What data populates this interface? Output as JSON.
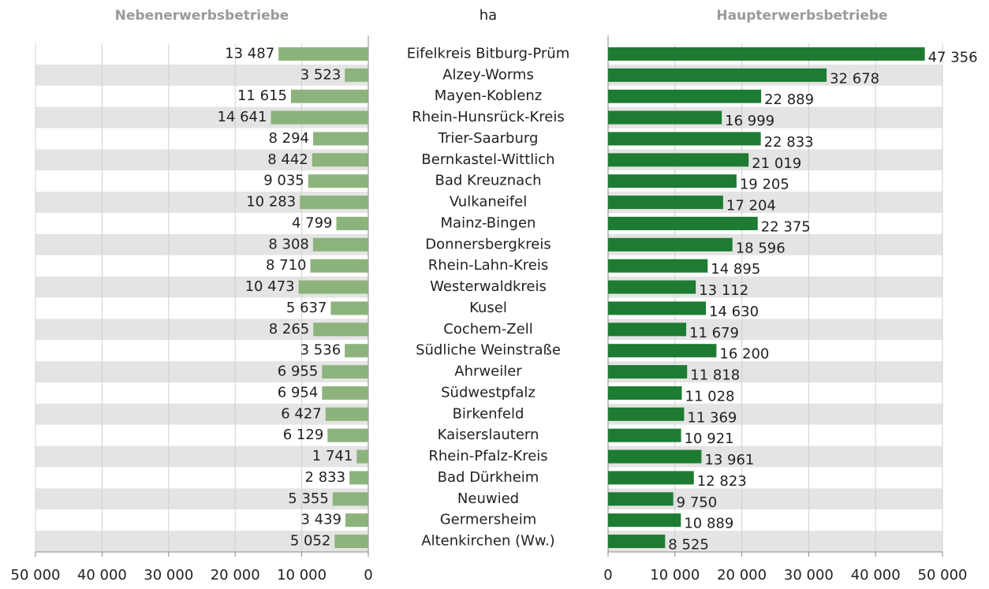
{
  "chart_data": {
    "type": "bar",
    "orientation": "horizontal",
    "unit": "ha",
    "categories": [
      "Eifelkreis Bitburg-Prüm",
      "Alzey-Worms",
      "Mayen-Koblenz",
      "Rhein-Hunsrück-Kreis",
      "Trier-Saarburg",
      "Bernkastel-Wittlich",
      "Bad Kreuznach",
      "Vulkaneifel",
      "Mainz-Bingen",
      "Donnersbergkreis",
      "Rhein-Lahn-Kreis",
      "Westerwaldkreis",
      "Kusel",
      "Cochem-Zell",
      "Südliche Weinstraße",
      "Ahrweiler",
      "Südwestpfalz",
      "Birkenfeld",
      "Kaiserslautern",
      "Rhein-Pfalz-Kreis",
      "Bad Dürkheim",
      "Neuwied",
      "Germersheim",
      "Altenkirchen (Ww.)"
    ],
    "series": [
      {
        "name": "Nebenerwerbsbetriebe",
        "color": "#8db37c",
        "side": "left",
        "values": [
          13487,
          3523,
          11615,
          14641,
          8294,
          8442,
          9035,
          10283,
          4799,
          8308,
          8710,
          10473,
          5637,
          8265,
          3536,
          6955,
          6954,
          6427,
          6129,
          1741,
          2833,
          5355,
          3439,
          5052
        ],
        "value_labels": [
          "13 487",
          "3 523",
          "11 615",
          "14 641",
          "8 294",
          "8 442",
          "9 035",
          "10 283",
          "4 799",
          "8 308",
          "8 710",
          "10 473",
          "5 637",
          "8 265",
          "3 536",
          "6 955",
          "6 954",
          "6 427",
          "6 129",
          "1 741",
          "2 833",
          "5 355",
          "3 439",
          "5 052"
        ]
      },
      {
        "name": "Haupterwerbsbetriebe",
        "color": "#1e7b32",
        "side": "right",
        "values": [
          47356,
          32678,
          22889,
          16999,
          22833,
          21019,
          19205,
          17204,
          22375,
          18596,
          14895,
          13112,
          14630,
          11679,
          16200,
          11818,
          11028,
          11369,
          10921,
          13961,
          12823,
          9750,
          10889,
          8525
        ],
        "value_labels": [
          "47 356",
          "32 678",
          "22 889",
          "16 999",
          "22 833",
          "21 019",
          "19 205",
          "17 204",
          "22 375",
          "18 596",
          "14 895",
          "13 112",
          "14 630",
          "11 679",
          "16 200",
          "11 818",
          "11 028",
          "11 369",
          "10 921",
          "13 961",
          "12 823",
          "9 750",
          "10 889",
          "8 525"
        ]
      }
    ],
    "xlim": [
      0,
      50000
    ],
    "xticks": [
      0,
      {
        "value": 10000,
        "label": "10 000"
      },
      {
        "value": 20000,
        "label": "20 000"
      },
      {
        "value": 30000,
        "label": "30 000"
      },
      {
        "value": 40000,
        "label": "40 000"
      },
      {
        "value": 50000,
        "label": "50 000"
      }
    ],
    "grid": true
  }
}
